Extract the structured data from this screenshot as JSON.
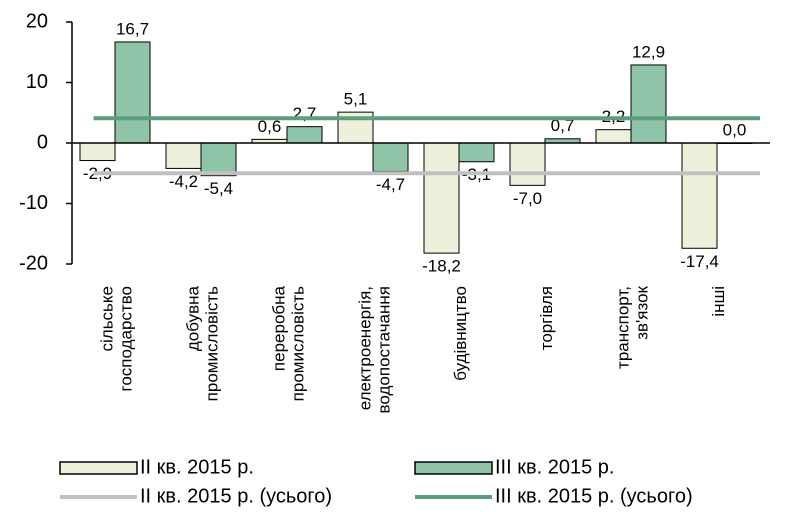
{
  "chart_data": {
    "type": "bar",
    "categories": [
      "сільське\nгосподарство",
      "добувна\nпромисловість",
      "переробна\nпромисловість",
      "електроенергія,\nводопостачання",
      "будівництво",
      "торгівля",
      "транспорт,\nзв'язок",
      "інші"
    ],
    "series": [
      {
        "name": "ІІ кв. 2015 р.",
        "color": "#eef0dc",
        "values": [
          -2.9,
          -4.2,
          0.6,
          5.1,
          -18.2,
          -7.0,
          2.2,
          -17.4
        ],
        "value_labels": [
          "-2,9",
          "-4,2",
          "0,6",
          "5,1",
          "-18,2",
          "-7,0",
          "2,2",
          "-17,4"
        ]
      },
      {
        "name": "ІІІ кв. 2015 р.",
        "color": "#8fc4a9",
        "values": [
          16.7,
          -5.4,
          2.7,
          -4.7,
          -3.1,
          0.7,
          12.9,
          0.0
        ],
        "value_labels": [
          "16,7",
          "-5,4",
          "2,7",
          "-4,7",
          "-3,1",
          "0,7",
          "12,9",
          "0,0"
        ]
      },
      {
        "name": "ІІ кв. 2015 р. (усього)",
        "color": "#c0c0c0",
        "type": "line",
        "values": [
          -5.0,
          -5.0,
          -5.0,
          -5.0,
          -5.0,
          -5.0,
          -5.0,
          -5.0
        ]
      },
      {
        "name": "ІІІ кв. 2015 р. (усього)",
        "color": "#5a9e7d",
        "type": "line",
        "values": [
          4.1,
          4.1,
          4.1,
          4.1,
          4.1,
          4.1,
          4.1,
          4.1
        ]
      }
    ],
    "ylim": [
      -20,
      20
    ],
    "yticks": [
      20,
      10,
      0,
      -10,
      -20
    ]
  }
}
